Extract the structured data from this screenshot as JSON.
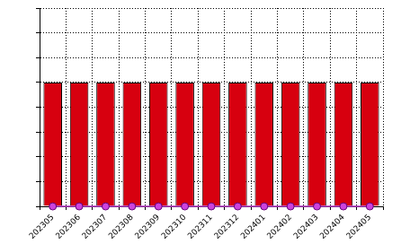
{
  "chart_data": {
    "type": "bar",
    "categories": [
      "202305",
      "202306",
      "202307",
      "202308",
      "202309",
      "202310",
      "202311",
      "202312",
      "202401",
      "202402",
      "202403",
      "202404",
      "202405"
    ],
    "series": [
      {
        "type": "bar",
        "color": "#d7000f",
        "values": [
          5,
          5,
          5,
          5,
          5,
          5,
          5,
          5,
          5,
          5,
          5,
          5,
          5
        ]
      },
      {
        "type": "line",
        "color": "#b030c0",
        "marker": "circle",
        "line_style": "solid",
        "values": [
          0,
          0,
          0,
          0,
          0,
          0,
          0,
          0,
          0,
          0,
          0,
          0,
          0
        ]
      }
    ],
    "ylim": [
      0,
      8
    ],
    "yticks": [
      0,
      1,
      2,
      3,
      4,
      5,
      6,
      7,
      8
    ],
    "grid": true,
    "tick_labels": "x"
  }
}
